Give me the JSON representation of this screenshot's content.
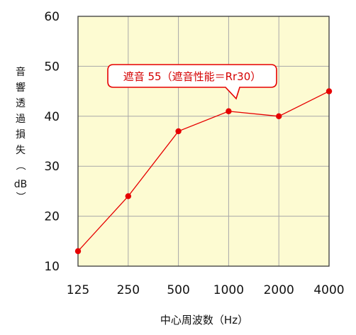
{
  "chart_data": {
    "type": "line",
    "categories": [
      "125",
      "250",
      "500",
      "1000",
      "2000",
      "4000"
    ],
    "series": [
      {
        "values": [
          13,
          24,
          37,
          41,
          40,
          45
        ]
      }
    ],
    "xlabel": "中心周波数（Hz）",
    "ylabel": "音響透過損失（dB）",
    "ylim": [
      10,
      60
    ],
    "yticks": [
      10,
      20,
      30,
      40,
      50,
      60
    ],
    "grid": true,
    "annotation": "遮音 55（遮音性能＝Rr30）",
    "colors": {
      "plot_bg": "#fdfbd2",
      "line": "#e60000",
      "grid": "#a8a8a8",
      "axis": "#3a3a3a"
    }
  }
}
